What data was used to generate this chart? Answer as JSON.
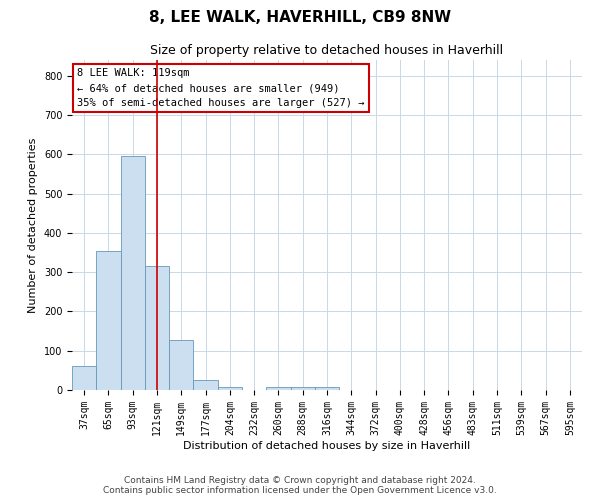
{
  "title": "8, LEE WALK, HAVERHILL, CB9 8NW",
  "subtitle": "Size of property relative to detached houses in Haverhill",
  "xlabel": "Distribution of detached houses by size in Haverhill",
  "ylabel": "Number of detached properties",
  "bar_labels": [
    "37sqm",
    "65sqm",
    "93sqm",
    "121sqm",
    "149sqm",
    "177sqm",
    "204sqm",
    "232sqm",
    "260sqm",
    "288sqm",
    "316sqm",
    "344sqm",
    "372sqm",
    "400sqm",
    "428sqm",
    "456sqm",
    "483sqm",
    "511sqm",
    "539sqm",
    "567sqm",
    "595sqm"
  ],
  "bar_values": [
    62,
    355,
    595,
    315,
    128,
    25,
    8,
    0,
    8,
    8,
    8,
    0,
    0,
    0,
    0,
    0,
    0,
    0,
    0,
    0,
    0
  ],
  "bar_color": "#ccdff0",
  "bar_edge_color": "#6699bb",
  "vline_color": "#cc0000",
  "ylim": [
    0,
    840
  ],
  "yticks": [
    0,
    100,
    200,
    300,
    400,
    500,
    600,
    700,
    800
  ],
  "annotation_text": "8 LEE WALK: 119sqm\n← 64% of detached houses are smaller (949)\n35% of semi-detached houses are larger (527) →",
  "annotation_box_color": "#ffffff",
  "annotation_edge_color": "#cc0000",
  "footer_line1": "Contains HM Land Registry data © Crown copyright and database right 2024.",
  "footer_line2": "Contains public sector information licensed under the Open Government Licence v3.0.",
  "bg_color": "#ffffff",
  "grid_color": "#c8d8e8",
  "title_fontsize": 11,
  "subtitle_fontsize": 9,
  "axis_label_fontsize": 8,
  "tick_fontsize": 7,
  "annotation_fontsize": 7.5,
  "footer_fontsize": 6.5
}
